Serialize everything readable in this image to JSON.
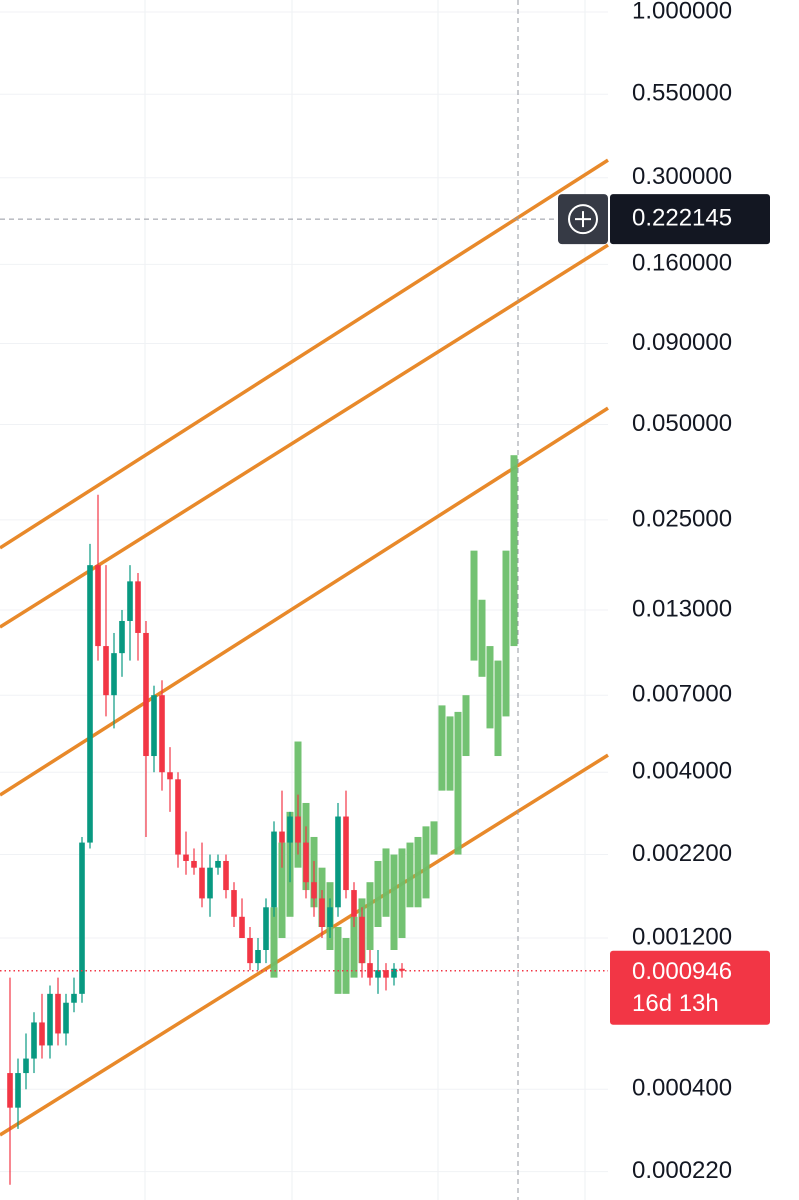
{
  "chart_data": {
    "type": "candlestick",
    "log_scale": true,
    "grid": true,
    "ylim": [
      1.091,
      0.000179
    ],
    "xlim": [
      -1.25,
      74.75
    ],
    "yticks": [
      {
        "value": 1.0,
        "label": "1.000000"
      },
      {
        "value": 0.55,
        "label": "0.550000"
      },
      {
        "value": 0.3,
        "label": "0.300000"
      },
      {
        "value": 0.16,
        "label": "0.160000"
      },
      {
        "value": 0.09,
        "label": "0.090000"
      },
      {
        "value": 0.05,
        "label": "0.050000"
      },
      {
        "value": 0.025,
        "label": "0.025000"
      },
      {
        "value": 0.013,
        "label": "0.013000"
      },
      {
        "value": 0.007,
        "label": "0.007000"
      },
      {
        "value": 0.004,
        "label": "0.004000"
      },
      {
        "value": 0.0022,
        "label": "0.002200"
      },
      {
        "value": 0.0012,
        "label": "0.001200"
      },
      {
        "value": 0.0004,
        "label": "0.000400"
      },
      {
        "value": 0.00022,
        "label": "0.000220"
      }
    ],
    "up_color": "#089981",
    "down_color": "#f23645",
    "open": [
      0.00045,
      0.00035,
      0.00045,
      0.0005,
      0.00065,
      0.00055,
      0.0008,
      0.0006,
      0.00075,
      0.0008,
      0.0024,
      0.018,
      0.01,
      0.007,
      0.0095,
      0.012,
      0.016,
      0.011,
      0.0045,
      0.007,
      0.004,
      0.0038,
      0.0022,
      0.0021,
      0.002,
      0.0016,
      0.002,
      0.0021,
      0.0017,
      0.0014,
      0.0012,
      0.001,
      0.0011,
      0.0015,
      0.0026,
      0.0024,
      0.0029,
      0.0024,
      0.0018,
      0.0016,
      0.0013,
      0.0015,
      0.0029,
      0.0017,
      0.0014,
      0.001,
      0.0009,
      0.00095,
      0.0009,
      0.00096
    ],
    "high": [
      0.0009,
      0.0005,
      0.0006,
      0.0007,
      0.0008,
      0.00085,
      0.0009,
      0.0008,
      0.0009,
      0.0025,
      0.021,
      0.03,
      0.018,
      0.011,
      0.013,
      0.018,
      0.017,
      0.012,
      0.0075,
      0.0078,
      0.0048,
      0.004,
      0.0026,
      0.0023,
      0.0024,
      0.0022,
      0.0022,
      0.0022,
      0.0018,
      0.0016,
      0.0013,
      0.0012,
      0.0016,
      0.0028,
      0.0035,
      0.003,
      0.0034,
      0.0027,
      0.0021,
      0.0017,
      0.0016,
      0.0032,
      0.0035,
      0.0018,
      0.0015,
      0.0011,
      0.0011,
      0.001,
      0.001,
      0.001
    ],
    "low": [
      0.0002,
      0.0003,
      0.0004,
      0.00045,
      0.0005,
      0.0005,
      0.00055,
      0.00055,
      0.0007,
      0.00075,
      0.0023,
      0.009,
      0.006,
      0.0055,
      0.008,
      0.009,
      0.009,
      0.0025,
      0.004,
      0.0035,
      0.003,
      0.002,
      0.0019,
      0.0019,
      0.0015,
      0.0014,
      0.0019,
      0.0016,
      0.0013,
      0.0012,
      0.00095,
      0.00095,
      0.001,
      0.0014,
      0.002,
      0.0018,
      0.0022,
      0.0016,
      0.0014,
      0.0012,
      0.0012,
      0.0014,
      0.0016,
      0.0013,
      0.0009,
      0.00085,
      0.0008,
      0.00082,
      0.00085,
      0.0009
    ],
    "close": [
      0.00035,
      0.00045,
      0.0005,
      0.00065,
      0.00055,
      0.0008,
      0.0006,
      0.00075,
      0.0008,
      0.0024,
      0.018,
      0.01,
      0.007,
      0.0095,
      0.012,
      0.016,
      0.011,
      0.0045,
      0.007,
      0.004,
      0.0038,
      0.0022,
      0.0021,
      0.002,
      0.0016,
      0.002,
      0.0021,
      0.0017,
      0.0014,
      0.0012,
      0.001,
      0.0011,
      0.0015,
      0.0026,
      0.0024,
      0.0029,
      0.0024,
      0.0018,
      0.0016,
      0.0013,
      0.0015,
      0.0029,
      0.0017,
      0.0014,
      0.001,
      0.0009,
      0.00095,
      0.0009,
      0.00096,
      0.000946
    ],
    "projection": {
      "color": "#6cbf6a",
      "x": [
        33,
        34,
        35,
        36,
        37,
        38,
        39,
        40,
        41,
        42,
        43,
        44,
        45,
        46,
        47,
        48,
        49,
        50,
        51,
        52,
        53,
        54,
        55,
        56,
        57,
        58,
        59,
        60,
        61,
        62,
        63
      ],
      "low": [
        0.0009,
        0.0012,
        0.0014,
        0.002,
        0.0017,
        0.0015,
        0.0013,
        0.0011,
        0.0008,
        0.0008,
        0.0009,
        0.001,
        0.0011,
        0.0013,
        0.0014,
        0.0011,
        0.0012,
        0.0015,
        0.0015,
        0.0016,
        0.0022,
        0.0035,
        0.0035,
        0.0022,
        0.0045,
        0.009,
        0.008,
        0.0055,
        0.0045,
        0.006,
        0.01
      ],
      "high": [
        0.0015,
        0.0024,
        0.003,
        0.005,
        0.0032,
        0.0025,
        0.002,
        0.0018,
        0.0013,
        0.0012,
        0.0014,
        0.0016,
        0.0018,
        0.0021,
        0.0023,
        0.0022,
        0.0023,
        0.0024,
        0.0025,
        0.0027,
        0.0028,
        0.0065,
        0.006,
        0.0062,
        0.007,
        0.02,
        0.014,
        0.01,
        0.009,
        0.02,
        0.04
      ]
    },
    "channel": {
      "color": "#e8892a",
      "lines": [
        {
          "x": [
            -1.25,
            74.75
          ],
          "y": [
            0.0204,
            0.341
          ]
        },
        {
          "x": [
            -1.25,
            74.75
          ],
          "y": [
            0.01148,
            0.184
          ]
        },
        {
          "x": [
            -1.25,
            74.75
          ],
          "y": [
            0.00339,
            0.0563
          ]
        },
        {
          "x": [
            -1.25,
            74.75
          ],
          "y": [
            0.000287,
            0.00453
          ]
        }
      ]
    },
    "crosshair": {
      "x": 63.5,
      "price": 0.222145
    },
    "last_price": 0.000946,
    "countdown": "16d 13h"
  }
}
